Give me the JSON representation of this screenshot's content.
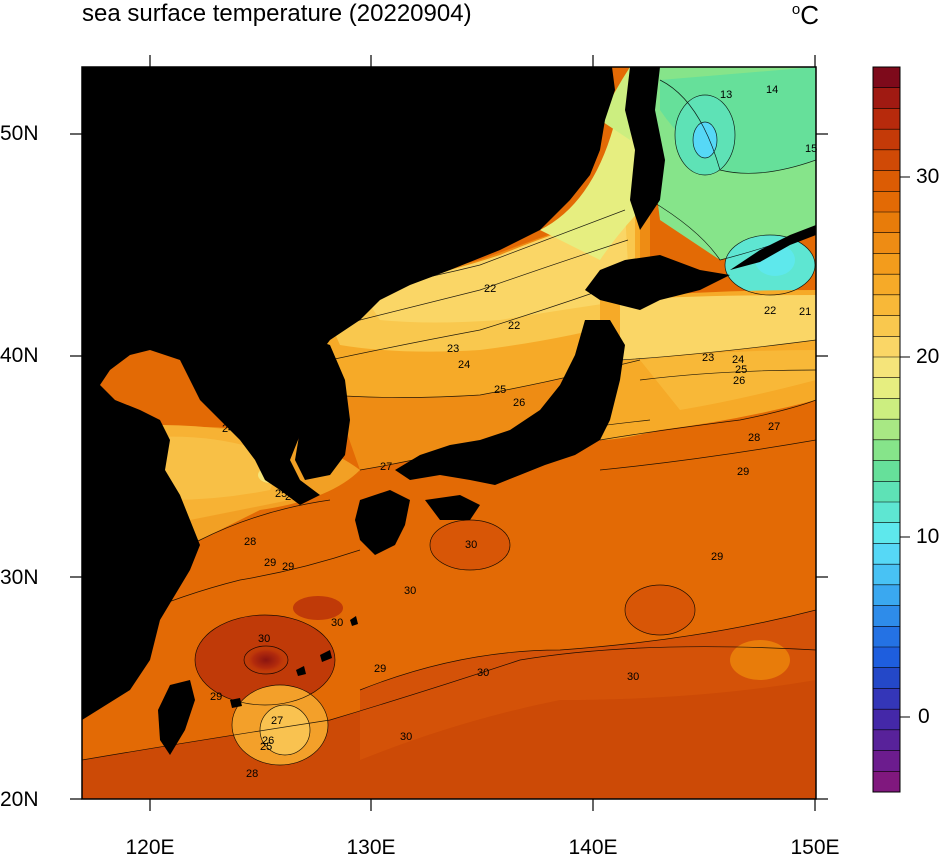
{
  "title": "sea surface temperature (20220904)",
  "unit": {
    "base": "C",
    "superscript": "o"
  },
  "lat_labels": [
    "50N",
    "40N",
    "30N",
    "20N"
  ],
  "lon_labels": [
    "120E",
    "130E",
    "140E",
    "150E"
  ],
  "colorbar": {
    "labels": [
      "30",
      "20",
      "10",
      "0"
    ],
    "colors": [
      "#7e0a1b",
      "#a01a12",
      "#b72a0c",
      "#c43a08",
      "#d04a06",
      "#dc5c04",
      "#e36a05",
      "#e87c0a",
      "#ee8c14",
      "#f39c1c",
      "#f6aa28",
      "#f8b838",
      "#f9c84e",
      "#fad666",
      "#f5e47a",
      "#e6ee80",
      "#ccee80",
      "#a8e884",
      "#86e48a",
      "#66e09a",
      "#5ee2b6",
      "#5ee6d2",
      "#5ee8ec",
      "#56d8f6",
      "#48c2f4",
      "#3aa8f0",
      "#2e8cea",
      "#2472e4",
      "#1e5ede",
      "#2448c8",
      "#3436b8",
      "#4428a8",
      "#58229a",
      "#6c1c8e",
      "#80187e"
    ]
  },
  "contour_labels": [
    "13",
    "14",
    "15",
    "22",
    "21",
    "22",
    "22",
    "23",
    "24",
    "25",
    "26",
    "27",
    "23",
    "24",
    "25",
    "26",
    "27",
    "28",
    "29",
    "24",
    "25",
    "26",
    "27",
    "27",
    "28",
    "29",
    "30",
    "30",
    "29",
    "30",
    "29",
    "30",
    "30",
    "30",
    "29",
    "28",
    "27",
    "26",
    "25",
    "29",
    "30"
  ],
  "colors": {
    "land": "#000000",
    "warm_sea": "#e66a0a",
    "hot_sea": "#cc4a06"
  }
}
